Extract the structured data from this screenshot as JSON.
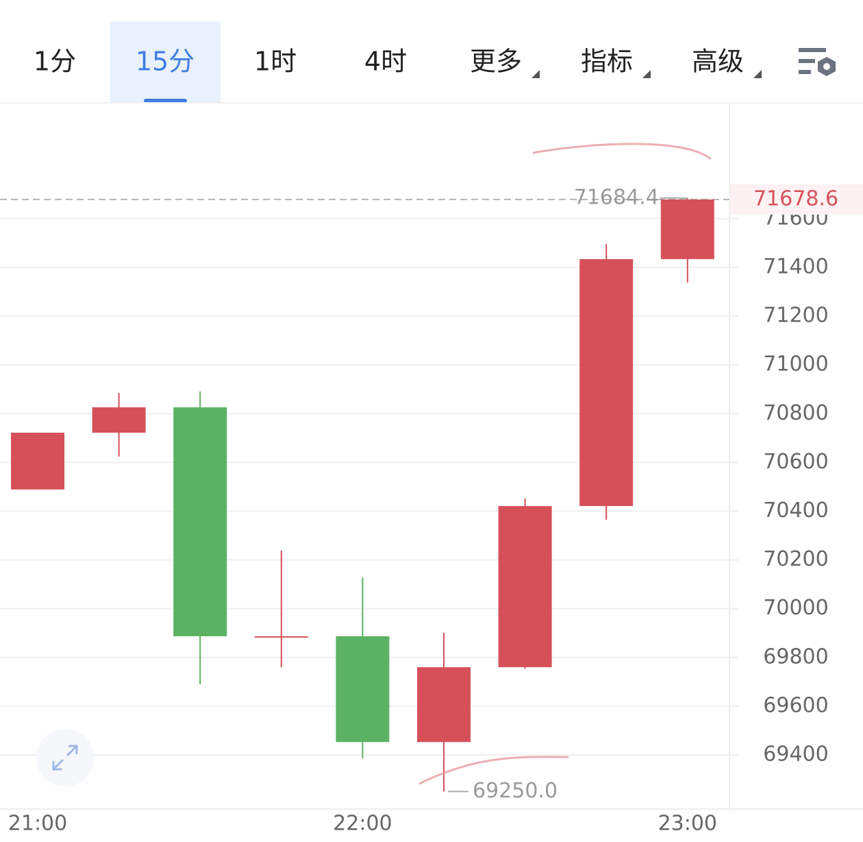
{
  "tabs": [
    "1分",
    "15分",
    "1时",
    "4时",
    "更多",
    "指标",
    "高级"
  ],
  "active_tab": "15分",
  "chart_data": {
    "type": "candlestick",
    "categories": [
      "21:00",
      null,
      null,
      null,
      "22:00",
      null,
      null,
      null,
      "23:00"
    ],
    "open": [
      70489,
      70722,
      70826,
      69887,
      69887,
      69453,
      69760,
      70421,
      71434
    ],
    "high": [
      70722,
      70885,
      70891,
      70238,
      70129,
      69901,
      70452,
      71496,
      71684.4
    ],
    "low": [
      70489,
      70624,
      69690,
      69760,
      69386,
      69250,
      69754,
      70365,
      71338
    ],
    "close": [
      70722,
      70826,
      69887,
      69887,
      69453,
      69760,
      70421,
      71434,
      71678.6
    ],
    "up_color": "#d6505a",
    "down_color": "#5cb264",
    "ylim": [
      69178,
      72075
    ],
    "yticks": [
      69400,
      69600,
      69800,
      70000,
      70200,
      70400,
      70600,
      70800,
      71000,
      71200,
      71400,
      71600
    ],
    "grid": true,
    "max_label": 71684.4,
    "min_label": {
      "value": 69250,
      "label": "69250.0"
    },
    "last_price": 71678.6
  }
}
